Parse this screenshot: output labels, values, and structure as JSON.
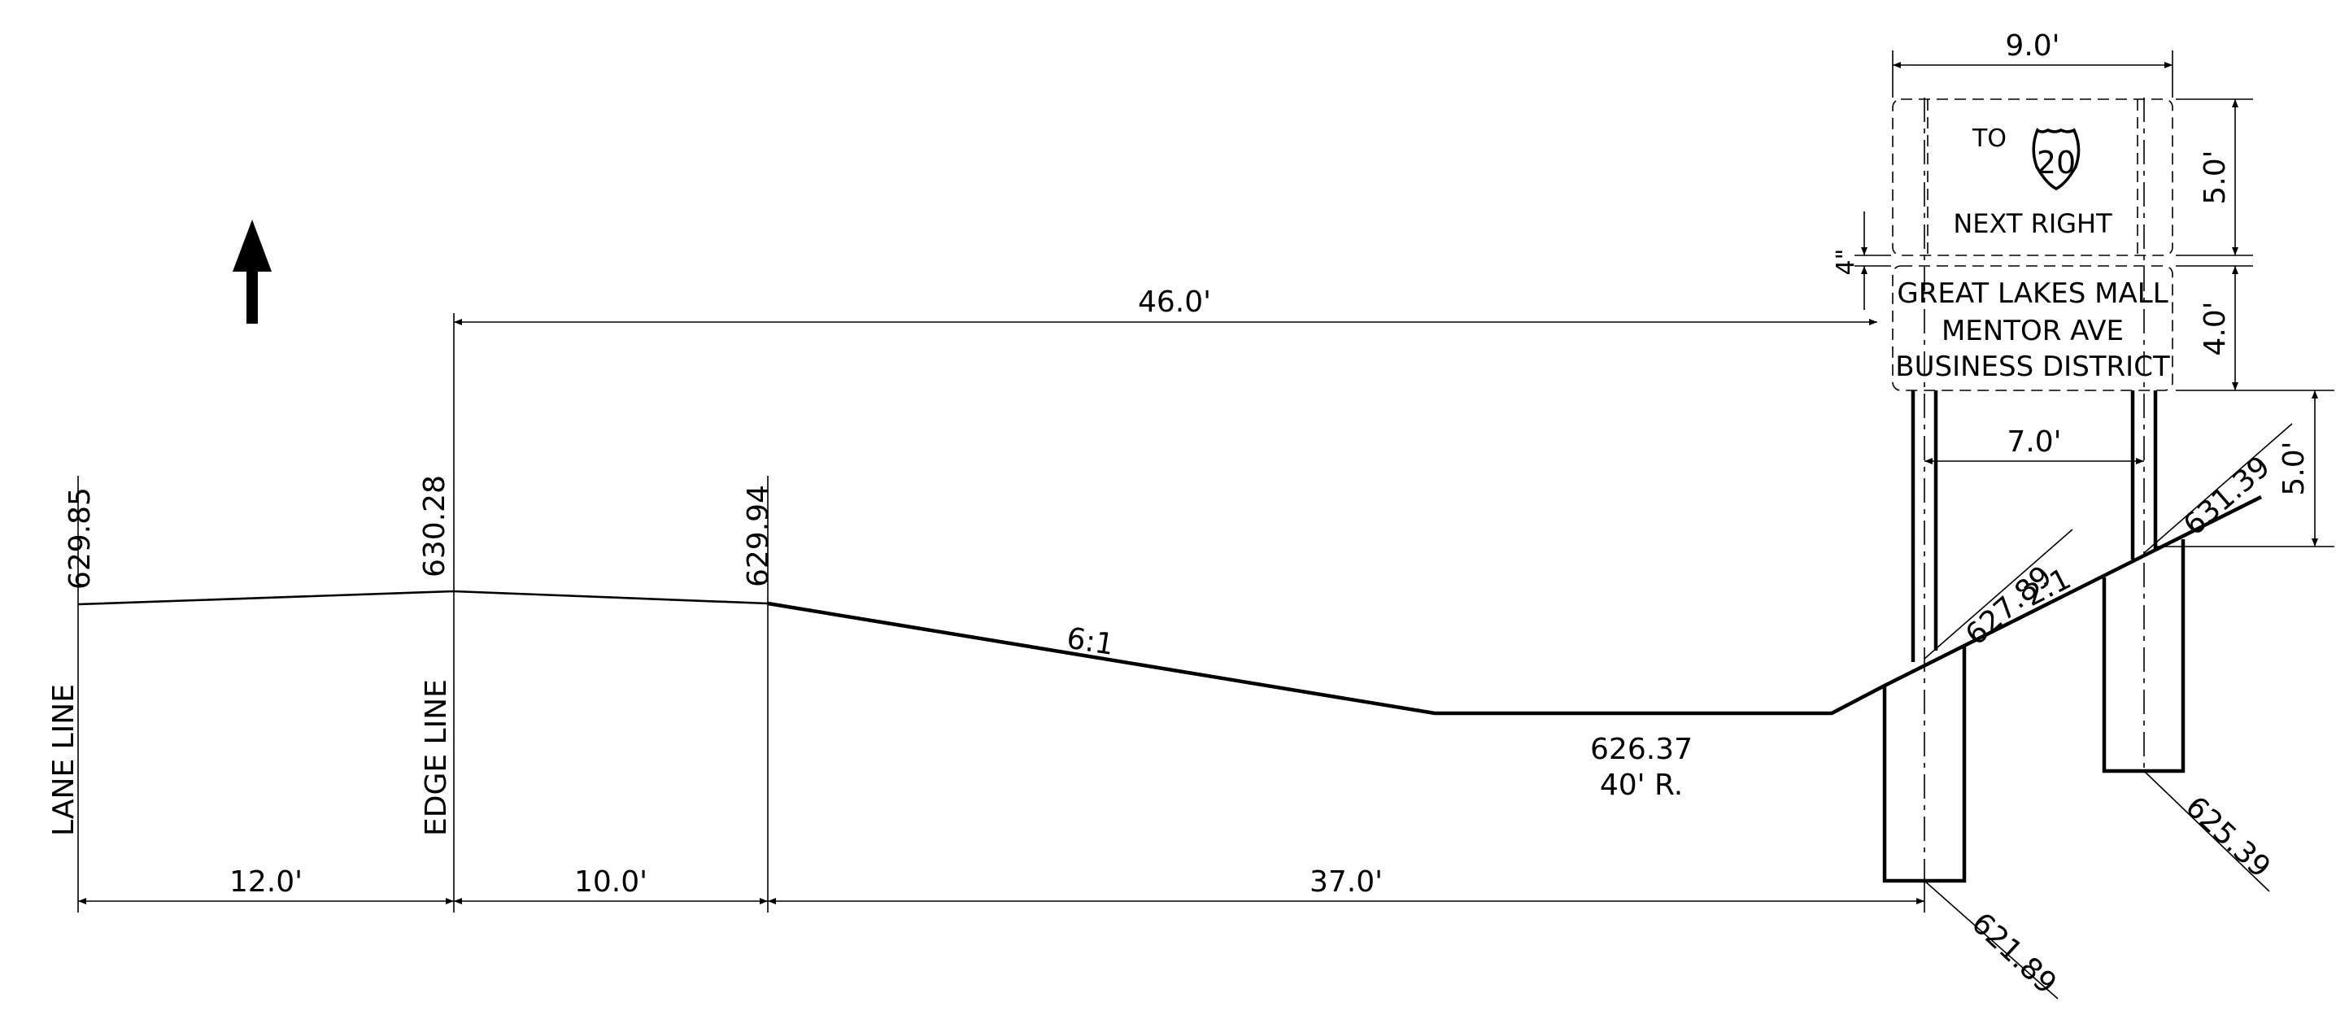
{
  "labels": {
    "lane_line": "LANE LINE",
    "edge_line": "EDGE LINE",
    "elev_lane": "629.85",
    "elev_edge": "630.28",
    "elev_shoulder": "629.94",
    "slope_fore": "6:1",
    "slope_back": "2:1",
    "ditch_elev": "626.37",
    "ditch_radius": "40' R.",
    "elev_left_post": "627.89",
    "elev_right_post": "631.39",
    "footing_left": "621.89",
    "footing_right": "625.39"
  },
  "dimensions": {
    "lane_width": "12.0'",
    "shoulder_width": "10.0'",
    "to_post": "37.0'",
    "offset": "46.0'",
    "sign_width": "9.0'",
    "post_spacing": "7.0'",
    "upper_panel_height": "5.0'",
    "lower_panel_height": "4.0'",
    "panel_gap": "4\"",
    "clearance": "5.0'"
  },
  "sign": {
    "upper": {
      "to": "TO",
      "route": "20",
      "action": "NEXT RIGHT"
    },
    "lower": {
      "line1": "GREAT LAKES MALL",
      "line2": "MENTOR AVE",
      "line3": "BUSINESS DISTRICT"
    }
  },
  "icons": {
    "north": "north-arrow-icon",
    "shield": "us-route-shield-icon"
  }
}
